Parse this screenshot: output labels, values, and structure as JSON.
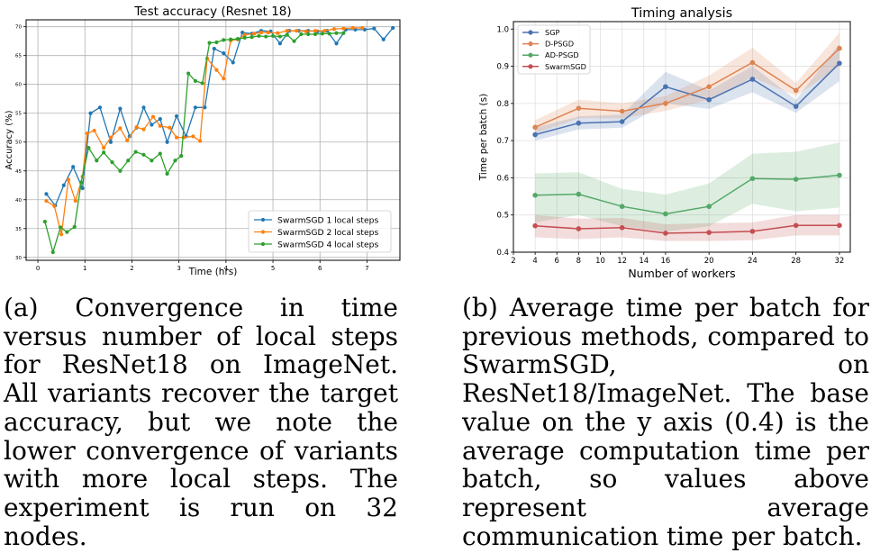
{
  "chart_data": [
    {
      "type": "line",
      "title": "Test accuracy (Resnet 18)",
      "xlabel": "Time (hrs)",
      "ylabel": "Accuracy (%)",
      "xlim": [
        -0.25,
        7.7
      ],
      "ylim": [
        29.5,
        71.2
      ],
      "xticks": [
        0,
        1,
        2,
        3,
        4,
        5,
        6,
        7
      ],
      "yticks": [
        30,
        35,
        40,
        45,
        50,
        55,
        60,
        65,
        70
      ],
      "grid": true,
      "legend": "lower-right",
      "series": [
        {
          "name": "SwarmSGD 1 local steps",
          "color": "#1f77b4",
          "x": [
            0.18,
            0.37,
            0.55,
            0.75,
            0.95,
            1.12,
            1.32,
            1.55,
            1.75,
            1.95,
            2.1,
            2.25,
            2.42,
            2.6,
            2.75,
            2.95,
            3.15,
            3.35,
            3.55,
            3.75,
            3.95,
            4.15,
            4.35,
            4.55,
            4.75,
            4.95,
            5.15,
            5.35,
            5.55,
            5.75,
            5.95,
            6.15,
            6.35,
            6.55,
            6.75,
            6.95,
            7.15,
            7.35,
            7.55
          ],
          "y": [
            41,
            39,
            42.5,
            45.7,
            42,
            55,
            56,
            50,
            55.8,
            51,
            52.5,
            56,
            53,
            54,
            50,
            54.5,
            51,
            56,
            56,
            66.2,
            65.4,
            63.8,
            69,
            68.8,
            69.3,
            69.2,
            67.1,
            69.3,
            69.3,
            69.3,
            69.2,
            69.3,
            67.1,
            69.5,
            69.5,
            69.5,
            69.7,
            67.8,
            69.8
          ]
        },
        {
          "name": "SwarmSGD 2 local steps",
          "color": "#ff7f0e",
          "x": [
            0.18,
            0.35,
            0.5,
            0.65,
            0.8,
            0.95,
            1.05,
            1.2,
            1.4,
            1.55,
            1.75,
            1.9,
            2.1,
            2.25,
            2.45,
            2.6,
            2.8,
            2.95,
            3.1,
            3.3,
            3.45,
            3.6,
            3.8,
            3.95,
            4.1,
            4.25,
            4.4,
            4.6,
            4.75,
            4.9,
            5.1,
            5.3,
            5.5,
            5.7,
            5.9,
            6.1,
            6.3,
            6.5,
            6.7,
            6.9
          ],
          "y": [
            39.8,
            38.9,
            34,
            43.5,
            39.8,
            44,
            51.5,
            52,
            49,
            50.8,
            52.4,
            50.3,
            52.6,
            52.2,
            54.4,
            52.8,
            52.5,
            50.8,
            50.8,
            51,
            50.2,
            64.5,
            62.5,
            61,
            67.6,
            67.8,
            68.6,
            68.8,
            69,
            69,
            68.9,
            69.3,
            69.3,
            69.2,
            69.3,
            69.3,
            69.6,
            69.7,
            69.8,
            69.8
          ]
        },
        {
          "name": "SwarmSGD 4 local steps",
          "color": "#2ca02c",
          "x": [
            0.15,
            0.32,
            0.48,
            0.62,
            0.78,
            0.92,
            1.08,
            1.25,
            1.4,
            1.58,
            1.75,
            1.92,
            2.08,
            2.25,
            2.42,
            2.6,
            2.75,
            2.92,
            3.05,
            3.2,
            3.35,
            3.5,
            3.65,
            3.8,
            3.95,
            4.1,
            4.25,
            4.4,
            4.55,
            4.7,
            4.85,
            5.0,
            5.15,
            5.3,
            5.45,
            5.6,
            5.75,
            5.9,
            6.05,
            6.2,
            6.35,
            6.5
          ],
          "y": [
            36.2,
            30.9,
            35.2,
            34.4,
            35.3,
            43,
            49,
            46.8,
            48.2,
            46.5,
            45,
            46.8,
            48.3,
            47.8,
            46.8,
            48,
            44.5,
            46.8,
            47.6,
            61.9,
            60.6,
            60.2,
            67.2,
            67.3,
            67.7,
            67.8,
            67.9,
            68.1,
            68.2,
            68.4,
            68.3,
            68.4,
            68.3,
            68.6,
            67.5,
            68.7,
            68.7,
            68.7,
            68.8,
            68.8,
            68.9,
            68.9
          ]
        }
      ]
    },
    {
      "type": "line",
      "title": "Timing analysis",
      "xlabel": "Number of workers",
      "ylabel": "Time per batch (s)",
      "xlim": [
        2,
        33
      ],
      "ylim": [
        0.4,
        1.02
      ],
      "xticks": [
        2,
        4,
        6,
        8,
        10,
        12,
        14,
        16,
        20,
        24,
        28,
        32
      ],
      "yticks": [
        0.4,
        0.5,
        0.6,
        0.7,
        0.8,
        0.9,
        1.0
      ],
      "yticklabels": [
        "0.4",
        "0.5",
        "0.6",
        "0.7",
        "0.8",
        "0.9",
        "1.0"
      ],
      "grid": true,
      "legend": "top-left",
      "x": [
        4,
        8,
        12,
        16,
        20,
        24,
        28,
        32
      ],
      "series": [
        {
          "name": "SGP",
          "color": "#4c72b0",
          "values": [
            0.716,
            0.747,
            0.751,
            0.845,
            0.81,
            0.865,
            0.792,
            0.908
          ],
          "lower": [
            0.7,
            0.73,
            0.735,
            0.8,
            0.785,
            0.83,
            0.775,
            0.86
          ],
          "upper": [
            0.735,
            0.765,
            0.77,
            0.885,
            0.835,
            0.9,
            0.81,
            0.96
          ]
        },
        {
          "name": "D-PSGD",
          "color": "#dd8452",
          "values": [
            0.736,
            0.787,
            0.779,
            0.8,
            0.845,
            0.91,
            0.835,
            0.948
          ],
          "lower": [
            0.72,
            0.76,
            0.76,
            0.78,
            0.81,
            0.87,
            0.82,
            0.9
          ],
          "upper": [
            0.755,
            0.81,
            0.8,
            0.82,
            0.875,
            0.95,
            0.855,
            0.99
          ]
        },
        {
          "name": "AD-PSGD",
          "color": "#55a868",
          "values": [
            0.553,
            0.556,
            0.523,
            0.503,
            0.523,
            0.598,
            0.596,
            0.607
          ],
          "lower": [
            0.48,
            0.5,
            0.47,
            0.455,
            0.47,
            0.53,
            0.51,
            0.52
          ],
          "upper": [
            0.612,
            0.615,
            0.57,
            0.555,
            0.585,
            0.665,
            0.67,
            0.695
          ]
        },
        {
          "name": "SwarmSGD",
          "color": "#c44e52",
          "values": [
            0.471,
            0.463,
            0.466,
            0.451,
            0.453,
            0.456,
            0.472,
            0.472
          ],
          "lower": [
            0.44,
            0.435,
            0.44,
            0.43,
            0.43,
            0.432,
            0.445,
            0.445
          ],
          "upper": [
            0.5,
            0.49,
            0.492,
            0.475,
            0.478,
            0.48,
            0.5,
            0.5
          ]
        }
      ]
    }
  ],
  "captions": {
    "a": "(a) Convergence in time versus number of local steps for ResNet18 on ImageNet.  All variants recover the target accuracy, but we note the lower convergence of variants with more local steps.  The experiment is run on 32 nodes.",
    "b": "(b) Average time per batch for previous methods, compared to SwarmSGD, on ResNet18/ImageNet.  The base value on the y axis (0.4) is the average computation time per batch, so values above represent average communication time per batch."
  }
}
